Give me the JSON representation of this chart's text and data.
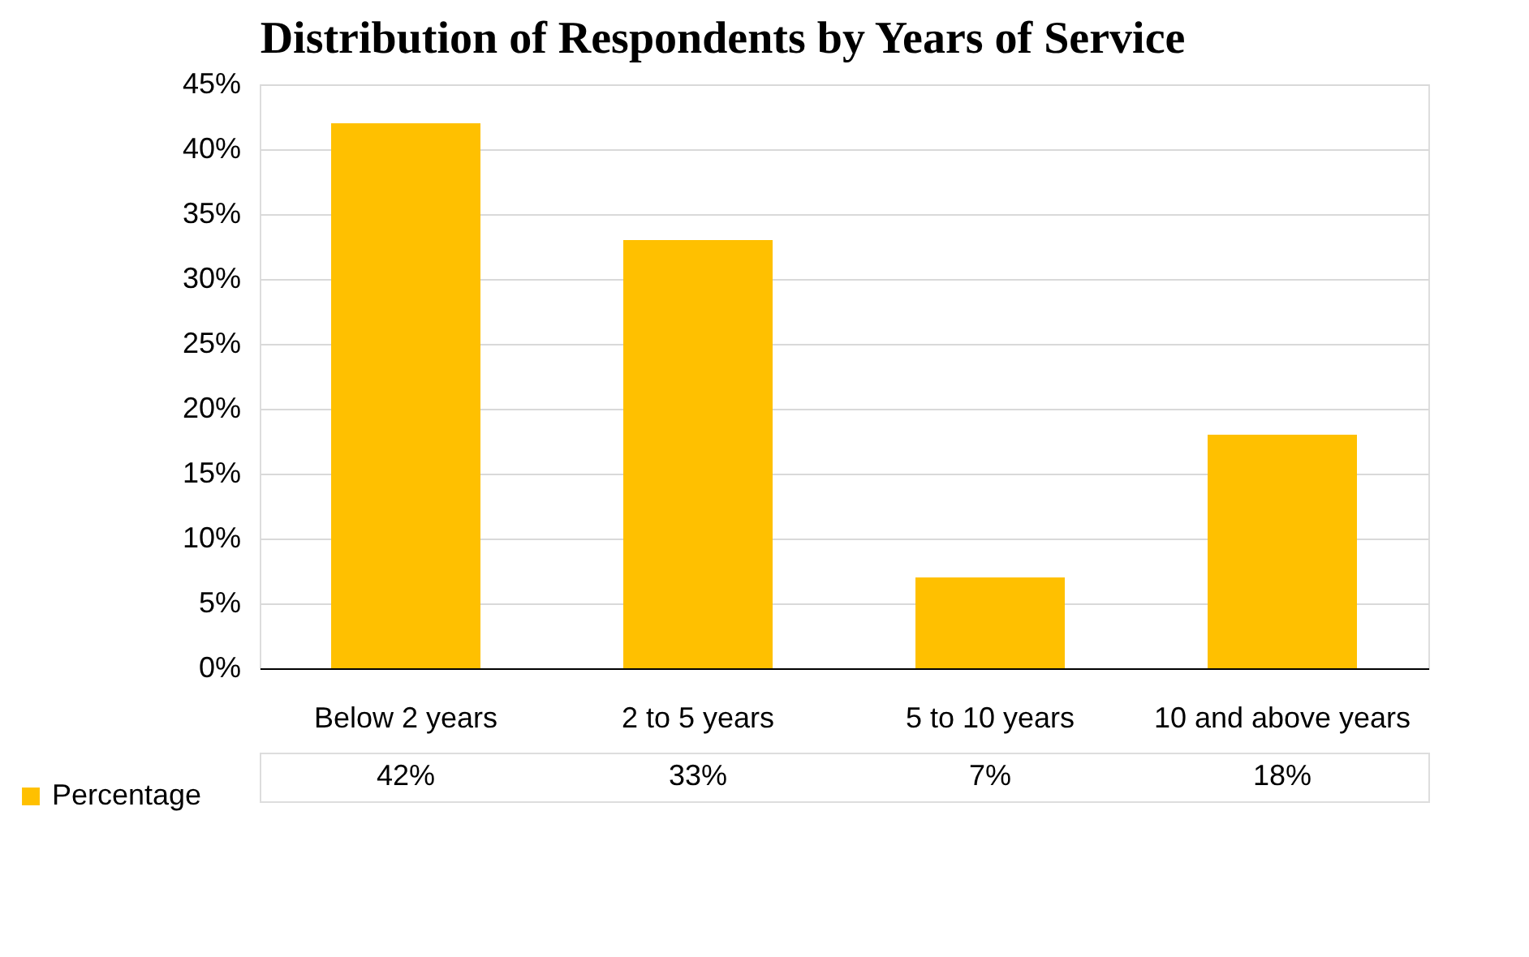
{
  "chart_data": {
    "type": "bar",
    "title": "Distribution of Respondents by Years of Service",
    "categories": [
      "Below 2 years",
      "2 to 5 years",
      "5 to 10 years",
      "10 and above years"
    ],
    "series": [
      {
        "name": "Percentage",
        "color": "#ffc000",
        "values": [
          42,
          33,
          7,
          18
        ],
        "value_labels": [
          "42%",
          "33%",
          "7%",
          "18%"
        ]
      }
    ],
    "ylim": [
      0,
      45
    ],
    "yticks": [
      {
        "value": 0,
        "label": "0%"
      },
      {
        "value": 5,
        "label": "5%"
      },
      {
        "value": 10,
        "label": "10%"
      },
      {
        "value": 15,
        "label": "15%"
      },
      {
        "value": 20,
        "label": "20%"
      },
      {
        "value": 25,
        "label": "25%"
      },
      {
        "value": 30,
        "label": "30%"
      },
      {
        "value": 35,
        "label": "35%"
      },
      {
        "value": 40,
        "label": "40%"
      },
      {
        "value": 45,
        "label": "45%"
      }
    ],
    "grid": "y",
    "legend": "bottom"
  }
}
